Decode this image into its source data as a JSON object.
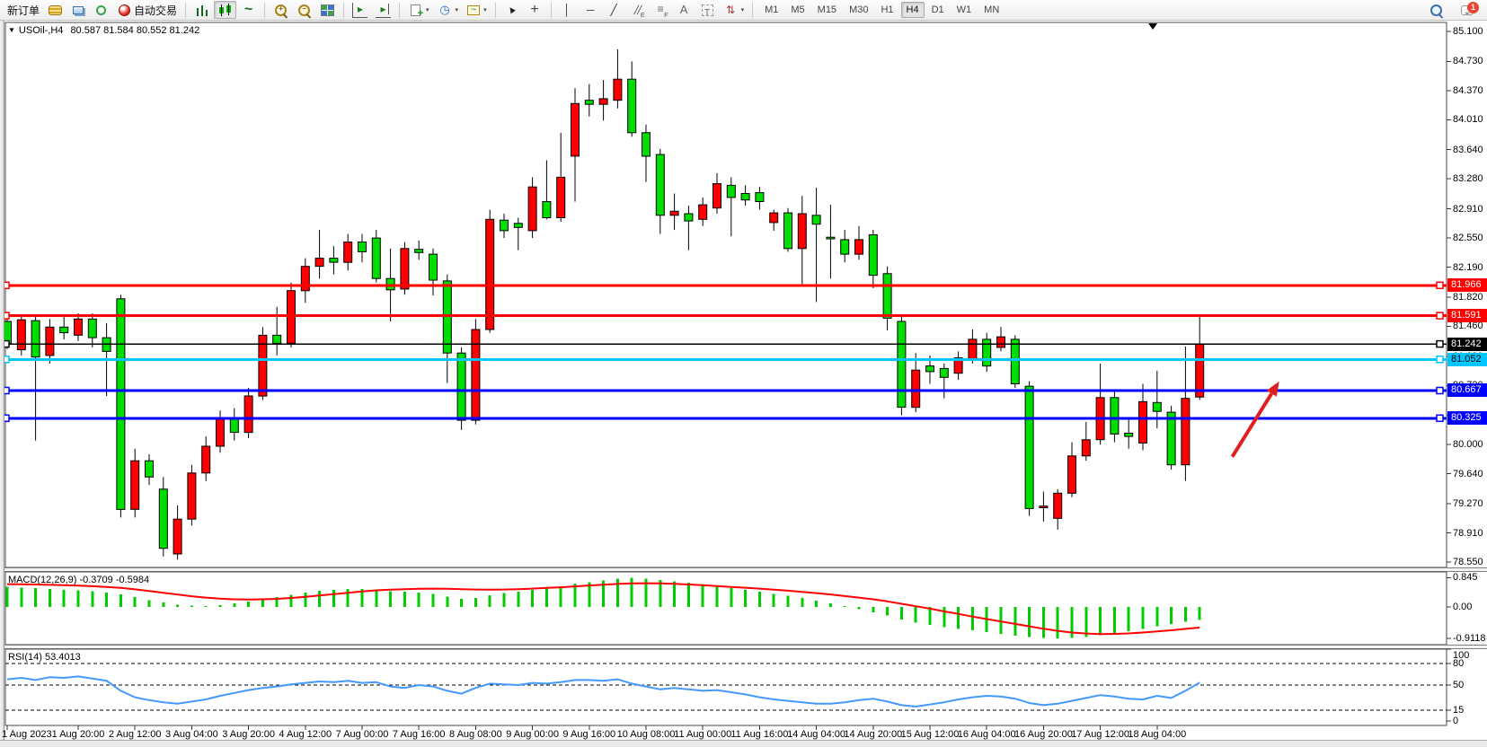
{
  "toolbar": {
    "items": [
      {
        "name": "new-order-button",
        "label": "新订单"
      },
      {
        "name": "market-watch-button",
        "icon": "coins"
      },
      {
        "name": "terminal-button",
        "icon": "terminal"
      },
      {
        "name": "signal-button",
        "icon": "signal"
      },
      {
        "name": "autotrading-button",
        "icon": "auto",
        "label": "自动交易"
      },
      {
        "sep": true
      },
      {
        "name": "bar-chart-button",
        "icon": "bars"
      },
      {
        "name": "candlestick-chart-button",
        "icon": "candles",
        "selected": true
      },
      {
        "name": "line-chart-button",
        "icon": "linechart"
      },
      {
        "sep": true
      },
      {
        "name": "zoom-in-button",
        "icon": "zoomin"
      },
      {
        "name": "zoom-out-button",
        "icon": "zoomout"
      },
      {
        "name": "tile-windows-button",
        "icon": "tile"
      },
      {
        "sep": true
      },
      {
        "name": "auto-scroll-button",
        "icon": "autoscroll"
      },
      {
        "name": "chart-shift-button",
        "icon": "shift"
      },
      {
        "sep": true
      },
      {
        "name": "new-chart-button",
        "icon": "newchart",
        "dropdown": true
      },
      {
        "name": "profiles-button",
        "icon": "clock",
        "dropdown": true
      },
      {
        "name": "indicators-button",
        "icon": "indicator",
        "dropdown": true
      },
      {
        "sep": true
      },
      {
        "name": "cursor-button",
        "icon": "cursor"
      },
      {
        "name": "crosshair-button",
        "icon": "crosshair"
      },
      {
        "sep": true
      },
      {
        "name": "vertical-line-button",
        "icon": "vline"
      },
      {
        "name": "horizontal-line-button",
        "icon": "hline"
      },
      {
        "name": "trendline-button",
        "icon": "tline"
      },
      {
        "name": "equidistant-channel-button",
        "icon": "channel"
      },
      {
        "name": "fibonacci-button",
        "icon": "fibo"
      },
      {
        "name": "text-button",
        "icon": "textA"
      },
      {
        "name": "label-button",
        "icon": "labelT"
      },
      {
        "name": "arrows-button",
        "icon": "shapes",
        "dropdown": true
      },
      {
        "sep": true
      }
    ],
    "timeframes": {
      "options": [
        "M1",
        "M5",
        "M15",
        "M30",
        "H1",
        "H4",
        "D1",
        "W1",
        "MN"
      ],
      "selected": "H4"
    },
    "right": [
      {
        "name": "search-button",
        "icon": "search"
      },
      {
        "name": "notifications-button",
        "icon": "chat",
        "badge": "1"
      }
    ],
    "notifications_badge": "1"
  },
  "chart": {
    "title": {
      "collapse_glyph": "▼",
      "symbol_period": "USOil-,H4",
      "ohlc": "80.587 81.584 80.552 81.242"
    }
  },
  "chart_data": {
    "type": "candlestick",
    "symbol": "USOil-",
    "timeframe": "H4",
    "ohlc_display": {
      "open": "80.587",
      "high": "81.584",
      "low": "80.552",
      "close": "81.242"
    },
    "colors": {
      "bull": "#ff0000",
      "bear": "#00dd00",
      "wick": "#000000",
      "note": "chinese convention red=up green=down"
    },
    "price_axis": {
      "ticks": [
        "85.100",
        "84.730",
        "84.370",
        "84.010",
        "83.640",
        "83.280",
        "82.910",
        "82.550",
        "82.190",
        "81.820",
        "81.460",
        "81.090",
        "80.730",
        "80.360",
        "80.000",
        "79.640",
        "79.270",
        "78.910",
        "78.550"
      ],
      "visible_range": [
        78.48,
        85.21
      ]
    },
    "time_axis": {
      "labels": [
        {
          "bar": 0,
          "text": "1 Aug 2023"
        },
        {
          "bar": 5,
          "text": "1 Aug 20:00"
        },
        {
          "bar": 9,
          "text": "2 Aug 12:00"
        },
        {
          "bar": 13,
          "text": "3 Aug 04:00"
        },
        {
          "bar": 17,
          "text": "3 Aug 20:00"
        },
        {
          "bar": 21,
          "text": "4 Aug 12:00"
        },
        {
          "bar": 25,
          "text": "7 Aug 00:00"
        },
        {
          "bar": 29,
          "text": "7 Aug 16:00"
        },
        {
          "bar": 33,
          "text": "8 Aug 08:00"
        },
        {
          "bar": 37,
          "text": "9 Aug 00:00"
        },
        {
          "bar": 41,
          "text": "9 Aug 16:00"
        },
        {
          "bar": 45,
          "text": "10 Aug 08:00"
        },
        {
          "bar": 49,
          "text": "11 Aug 00:00"
        },
        {
          "bar": 53,
          "text": "11 Aug 16:00"
        },
        {
          "bar": 57,
          "text": "14 Aug 04:00"
        },
        {
          "bar": 61,
          "text": "14 Aug 20:00"
        },
        {
          "bar": 65,
          "text": "15 Aug 12:00"
        },
        {
          "bar": 69,
          "text": "16 Aug 04:00"
        },
        {
          "bar": 73,
          "text": "16 Aug 20:00"
        },
        {
          "bar": 77,
          "text": "17 Aug 12:00"
        },
        {
          "bar": 81,
          "text": "18 Aug 04:00"
        }
      ]
    },
    "candles": [
      [
        81.52,
        81.62,
        81.18,
        81.25
      ],
      [
        81.17,
        81.6,
        81.1,
        81.54
      ],
      [
        81.53,
        81.6,
        80.05,
        81.08
      ],
      [
        81.1,
        81.55,
        81.0,
        81.45
      ],
      [
        81.45,
        81.58,
        81.3,
        81.38
      ],
      [
        81.35,
        81.62,
        81.28,
        81.55
      ],
      [
        81.55,
        81.62,
        81.2,
        81.32
      ],
      [
        81.32,
        81.5,
        80.6,
        81.15
      ],
      [
        81.8,
        81.85,
        79.1,
        79.2
      ],
      [
        79.2,
        79.95,
        79.1,
        79.8
      ],
      [
        79.8,
        79.88,
        79.5,
        79.6
      ],
      [
        79.45,
        79.6,
        78.62,
        78.72
      ],
      [
        78.65,
        79.25,
        78.58,
        79.08
      ],
      [
        79.08,
        79.75,
        79.0,
        79.65
      ],
      [
        79.65,
        80.1,
        79.55,
        79.98
      ],
      [
        79.98,
        80.42,
        79.9,
        80.33
      ],
      [
        80.33,
        80.45,
        80.05,
        80.15
      ],
      [
        80.15,
        80.7,
        80.08,
        80.6
      ],
      [
        80.6,
        81.45,
        80.55,
        81.35
      ],
      [
        81.35,
        81.7,
        81.1,
        81.25
      ],
      [
        81.25,
        82.0,
        81.2,
        81.9
      ],
      [
        81.9,
        82.3,
        81.75,
        82.2
      ],
      [
        82.2,
        82.65,
        82.05,
        82.3
      ],
      [
        82.3,
        82.45,
        82.1,
        82.25
      ],
      [
        82.25,
        82.6,
        82.15,
        82.5
      ],
      [
        82.5,
        82.6,
        82.25,
        82.38
      ],
      [
        82.55,
        82.65,
        82.0,
        82.05
      ],
      [
        82.05,
        82.42,
        81.52,
        81.91
      ],
      [
        81.92,
        82.5,
        81.85,
        82.42
      ],
      [
        82.41,
        82.52,
        82.28,
        82.37
      ],
      [
        82.35,
        82.42,
        81.84,
        82.03
      ],
      [
        82.02,
        82.1,
        80.76,
        81.13
      ],
      [
        81.13,
        81.2,
        80.18,
        80.3
      ],
      [
        80.3,
        81.55,
        80.25,
        81.42
      ],
      [
        81.42,
        82.9,
        81.38,
        82.78
      ],
      [
        82.77,
        82.85,
        82.55,
        82.64
      ],
      [
        82.73,
        82.8,
        82.4,
        82.68
      ],
      [
        82.64,
        83.3,
        82.55,
        83.18
      ],
      [
        83.0,
        83.51,
        82.78,
        82.8
      ],
      [
        82.8,
        83.85,
        82.75,
        83.3
      ],
      [
        83.56,
        84.4,
        83.0,
        84.21
      ],
      [
        84.25,
        84.45,
        84.05,
        84.2
      ],
      [
        84.2,
        84.5,
        84.0,
        84.27
      ],
      [
        84.25,
        84.88,
        84.15,
        84.51
      ],
      [
        84.51,
        84.73,
        83.8,
        83.85
      ],
      [
        83.85,
        83.95,
        83.24,
        83.56
      ],
      [
        83.58,
        83.65,
        82.6,
        82.83
      ],
      [
        82.83,
        83.1,
        82.65,
        82.88
      ],
      [
        82.85,
        82.95,
        82.4,
        82.76
      ],
      [
        82.78,
        83.05,
        82.7,
        82.96
      ],
      [
        82.92,
        83.35,
        82.85,
        83.22
      ],
      [
        83.2,
        83.3,
        82.57,
        83.05
      ],
      [
        83.1,
        83.2,
        82.95,
        83.02
      ],
      [
        83.11,
        83.18,
        82.9,
        83.0
      ],
      [
        82.74,
        82.9,
        82.64,
        82.86
      ],
      [
        82.86,
        82.92,
        82.38,
        82.42
      ],
      [
        82.42,
        83.07,
        81.97,
        82.85
      ],
      [
        82.83,
        83.17,
        81.76,
        82.72
      ],
      [
        82.56,
        82.96,
        82.05,
        82.54
      ],
      [
        82.53,
        82.65,
        82.25,
        82.35
      ],
      [
        82.35,
        82.7,
        82.28,
        82.53
      ],
      [
        82.59,
        82.65,
        81.93,
        82.09
      ],
      [
        82.11,
        82.2,
        81.41,
        81.56
      ],
      [
        81.52,
        81.6,
        80.36,
        80.46
      ],
      [
        80.46,
        81.13,
        80.4,
        80.92
      ],
      [
        80.97,
        81.1,
        80.75,
        80.9
      ],
      [
        80.94,
        81.0,
        80.57,
        80.83
      ],
      [
        80.88,
        81.15,
        80.8,
        81.07
      ],
      [
        81.05,
        81.42,
        81.0,
        81.3
      ],
      [
        81.3,
        81.38,
        80.9,
        80.97
      ],
      [
        81.2,
        81.45,
        81.15,
        81.33
      ],
      [
        81.3,
        81.35,
        80.7,
        80.75
      ],
      [
        80.72,
        80.78,
        79.12,
        79.21
      ],
      [
        79.22,
        79.42,
        79.05,
        79.24
      ],
      [
        79.09,
        79.45,
        78.95,
        79.4
      ],
      [
        79.4,
        80.03,
        79.35,
        79.86
      ],
      [
        79.86,
        80.28,
        79.8,
        80.06
      ],
      [
        80.06,
        81.0,
        80.0,
        80.58
      ],
      [
        80.58,
        80.65,
        80.03,
        80.13
      ],
      [
        80.14,
        80.34,
        79.95,
        80.1
      ],
      [
        80.02,
        80.75,
        79.93,
        80.53
      ],
      [
        80.52,
        80.91,
        80.2,
        80.41
      ],
      [
        80.4,
        80.48,
        79.69,
        79.75
      ],
      [
        79.75,
        81.21,
        79.55,
        80.57
      ],
      [
        80.587,
        81.584,
        80.552,
        81.242
      ]
    ],
    "hlines": [
      {
        "price": 81.966,
        "color": "#ff0000",
        "width": 3,
        "label": "81.966",
        "label_fg": "#ffffff"
      },
      {
        "price": 81.591,
        "color": "#ff0000",
        "width": 3,
        "label": "81.591",
        "label_fg": "#ffffff"
      },
      {
        "price": 81.242,
        "color": "#000000",
        "width": 1.5,
        "label": "81.242",
        "label_fg": "#ffffff"
      },
      {
        "price": 81.052,
        "color": "#00c6ff",
        "width": 3,
        "label": "81.052",
        "label_fg": "#000000"
      },
      {
        "price": 80.667,
        "color": "#0000ff",
        "width": 3,
        "label": "80.667",
        "label_fg": "#ffffff"
      },
      {
        "price": 80.325,
        "color": "#0000ff",
        "width": 3,
        "label": "80.325",
        "label_fg": "#ffffff"
      }
    ],
    "annotations": [
      {
        "type": "arrow",
        "color": "#e02020",
        "from_bar": 86.3,
        "from_price": 79.85,
        "to_bar": 89.6,
        "to_price": 80.78
      }
    ],
    "shift_marker_bar": 80.7,
    "indicators": [
      {
        "pane": "macd",
        "label": "MACD(12,26,9) -0.3709 -0.5984",
        "axis_ticks": [
          "0.845",
          "0.00",
          "-0.9118"
        ],
        "hist_color": "#00cc00",
        "signal_color": "#ff0000",
        "histogram": [
          0.58,
          0.56,
          0.54,
          0.52,
          0.5,
          0.48,
          0.45,
          0.42,
          0.36,
          0.28,
          0.2,
          0.13,
          0.07,
          0.04,
          0.03,
          0.05,
          0.1,
          0.16,
          0.22,
          0.28,
          0.35,
          0.42,
          0.47,
          0.5,
          0.52,
          0.52,
          0.5,
          0.46,
          0.44,
          0.42,
          0.38,
          0.3,
          0.24,
          0.26,
          0.34,
          0.4,
          0.44,
          0.5,
          0.55,
          0.6,
          0.67,
          0.72,
          0.77,
          0.82,
          0.845,
          0.82,
          0.78,
          0.74,
          0.7,
          0.65,
          0.6,
          0.55,
          0.5,
          0.44,
          0.38,
          0.32,
          0.26,
          0.18,
          0.1,
          0.02,
          -0.06,
          -0.15,
          -0.25,
          -0.36,
          -0.45,
          -0.52,
          -0.58,
          -0.63,
          -0.68,
          -0.73,
          -0.78,
          -0.83,
          -0.87,
          -0.9,
          -0.9118,
          -0.9,
          -0.87,
          -0.82,
          -0.76,
          -0.7,
          -0.63,
          -0.56,
          -0.49,
          -0.43,
          -0.3709
        ],
        "signal": [
          0.66,
          0.655,
          0.65,
          0.64,
          0.63,
          0.615,
          0.6,
          0.58,
          0.55,
          0.51,
          0.46,
          0.41,
          0.36,
          0.31,
          0.27,
          0.24,
          0.22,
          0.215,
          0.22,
          0.235,
          0.26,
          0.29,
          0.33,
          0.37,
          0.41,
          0.45,
          0.48,
          0.5,
          0.515,
          0.525,
          0.53,
          0.525,
          0.515,
          0.505,
          0.5,
          0.505,
          0.515,
          0.53,
          0.55,
          0.57,
          0.595,
          0.62,
          0.645,
          0.665,
          0.68,
          0.685,
          0.68,
          0.67,
          0.65,
          0.63,
          0.605,
          0.58,
          0.555,
          0.53,
          0.5,
          0.47,
          0.435,
          0.4,
          0.36,
          0.315,
          0.27,
          0.22,
          0.16,
          0.09,
          0.02,
          -0.05,
          -0.13,
          -0.2,
          -0.28,
          -0.35,
          -0.42,
          -0.49,
          -0.56,
          -0.63,
          -0.69,
          -0.74,
          -0.77,
          -0.785,
          -0.78,
          -0.765,
          -0.74,
          -0.71,
          -0.675,
          -0.635,
          -0.5984
        ]
      },
      {
        "pane": "rsi",
        "label": "RSI(14) 53.4013",
        "axis_ticks": [
          "100",
          "80",
          "50",
          "15",
          "0"
        ],
        "levels": [
          80,
          50,
          15
        ],
        "color": "#4499ff",
        "values": [
          58,
          60,
          57,
          61,
          60,
          62,
          59,
          56,
          42,
          33,
          29,
          26,
          24,
          27,
          30,
          35,
          39,
          43,
          46,
          48,
          51,
          53,
          55,
          54,
          56,
          53,
          54,
          48,
          46,
          50,
          48,
          42,
          38,
          46,
          52,
          51,
          50,
          53,
          52,
          54,
          57,
          57,
          56,
          58,
          52,
          48,
          44,
          46,
          44,
          42,
          43,
          40,
          37,
          33,
          30,
          28,
          26,
          24,
          24,
          26,
          29,
          31,
          27,
          22,
          20,
          23,
          26,
          30,
          33,
          35,
          34,
          31,
          25,
          22,
          24,
          28,
          32,
          36,
          34,
          31,
          30,
          35,
          32,
          42,
          53.4
        ]
      }
    ]
  }
}
